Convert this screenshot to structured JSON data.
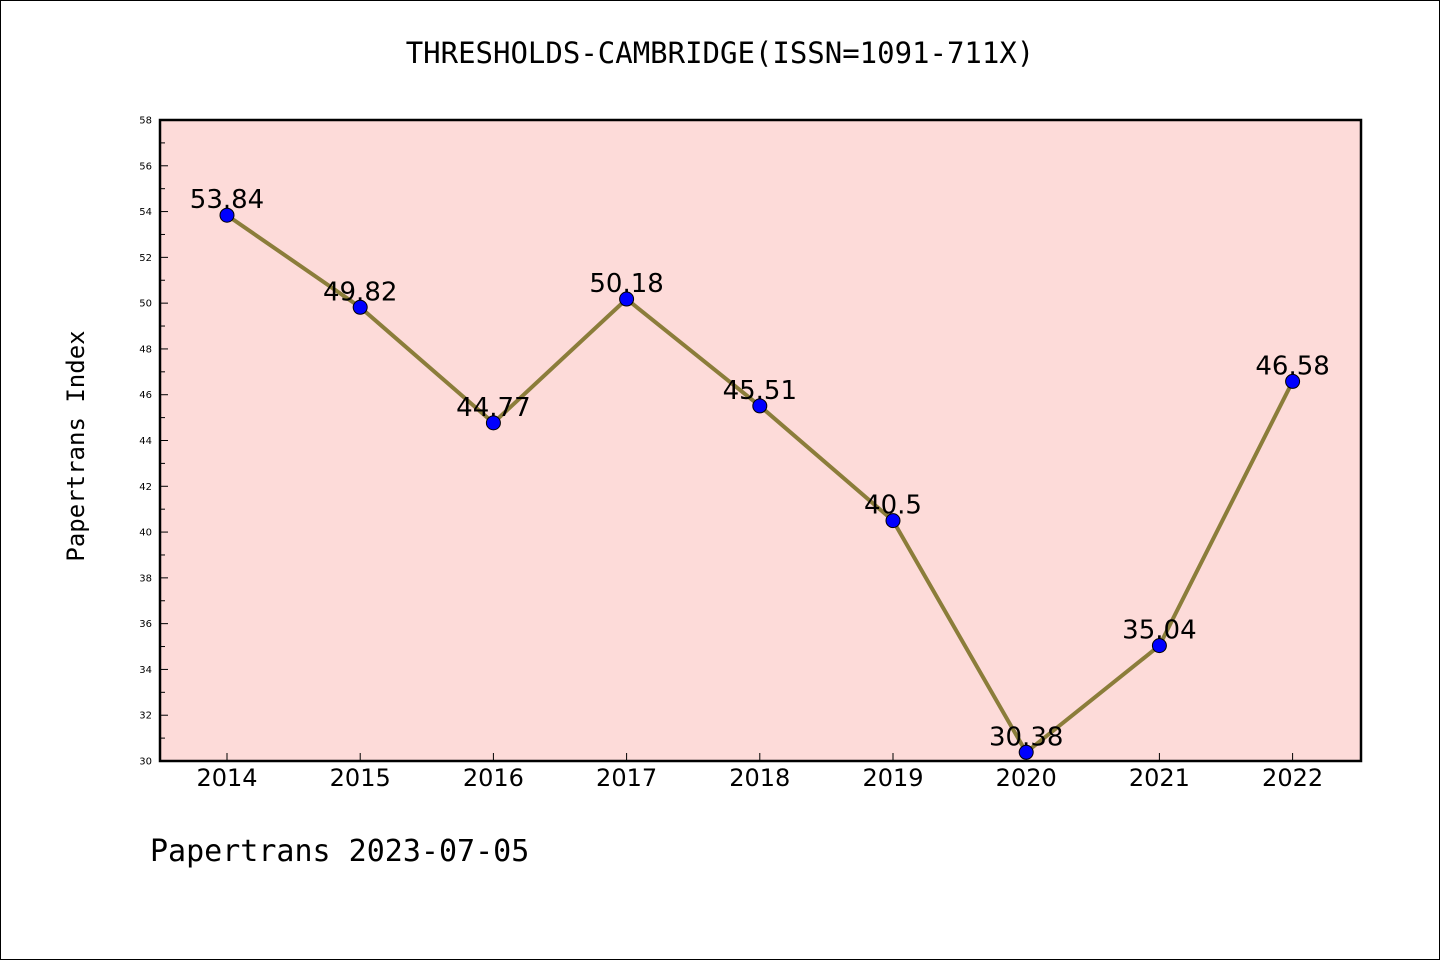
{
  "chart_data": {
    "type": "line",
    "title": "THRESHOLDS-CAMBRIDGE(ISSN=1091-711X)",
    "ylabel": "Papertrans Index",
    "xlabel": "",
    "categories": [
      "2014",
      "2015",
      "2016",
      "2017",
      "2018",
      "2019",
      "2020",
      "2021",
      "2022"
    ],
    "values": [
      53.84,
      49.82,
      44.77,
      50.18,
      45.51,
      40.5,
      30.38,
      35.04,
      46.58
    ],
    "data_labels": [
      "53.84",
      "49.82",
      "44.77",
      "50.18",
      "45.51",
      "40.5",
      "30.38",
      "35.04",
      "46.58"
    ],
    "ylim": [
      30,
      58
    ],
    "yticks": [
      30,
      32,
      34,
      36,
      38,
      40,
      42,
      44,
      46,
      48,
      50,
      52,
      54,
      56,
      58
    ],
    "grid": false,
    "plot_background": "#fddbd9",
    "line_color": "#8b7d3a",
    "marker_color": "#0000ff"
  },
  "footer": "Papertrans 2023-07-05"
}
